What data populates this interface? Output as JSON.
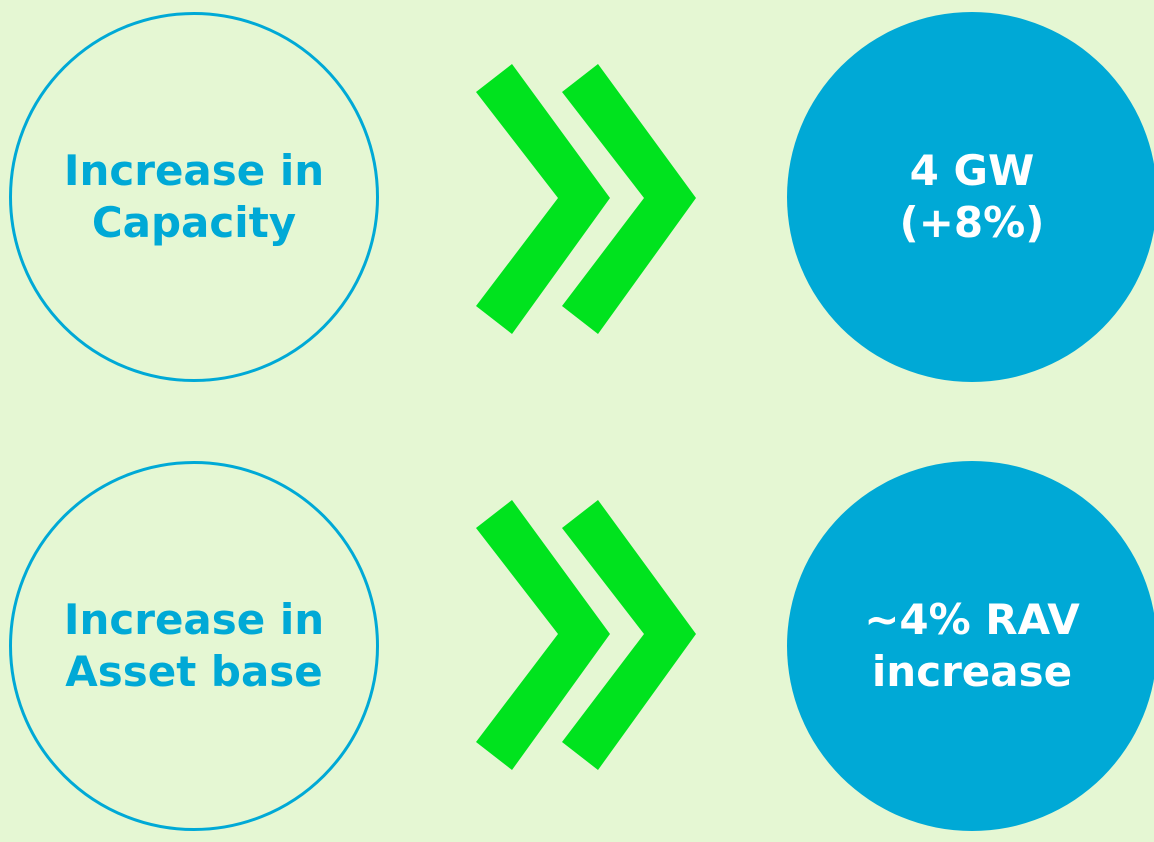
{
  "colors": {
    "background": "#E5F7D3",
    "accent": "#00A9D6",
    "arrow": "#00E31E",
    "filled_text": "#FFFFFF"
  },
  "rows": [
    {
      "left_circle": {
        "lines": [
          "Increase in",
          "Capacity"
        ]
      },
      "arrow_icon": "double-chevron-right-icon",
      "right_circle": {
        "lines": [
          "4 GW",
          "(+8%)"
        ]
      }
    },
    {
      "left_circle": {
        "lines": [
          "Increase in",
          "Asset base"
        ]
      },
      "arrow_icon": "double-chevron-right-icon",
      "right_circle": {
        "lines": [
          "~4% RAV",
          "increase"
        ]
      }
    }
  ]
}
